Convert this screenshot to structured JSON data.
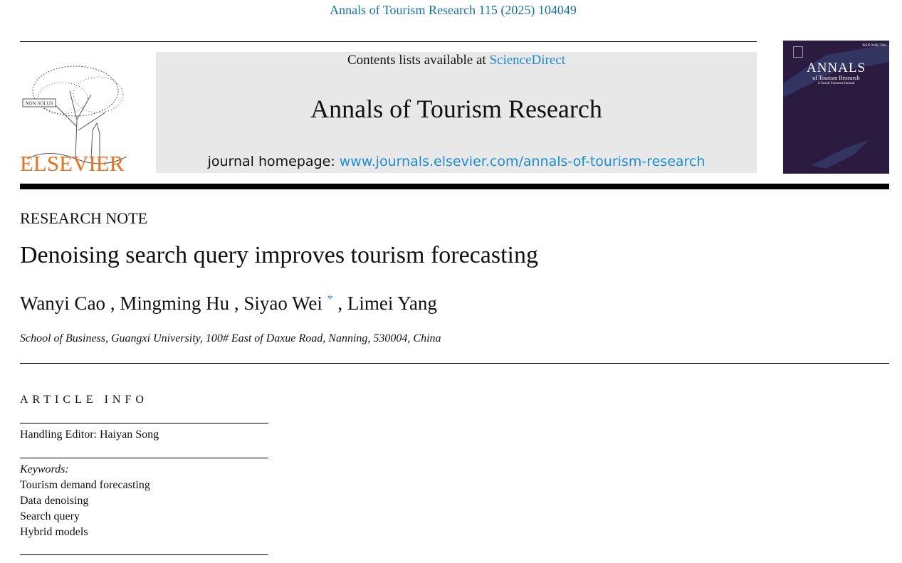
{
  "citation": "Annals of Tourism Research 115 (2025) 104049",
  "publisher": {
    "logo_text": "ELSEVIER",
    "motto": "NON SOLUS",
    "accent": "#e9711c"
  },
  "banner": {
    "contents_prefix": "Contents lists available at ",
    "contents_link": "ScienceDirect",
    "journal_name": "Annals of Tourism Research",
    "homepage_prefix": "journal homepage: ",
    "homepage_link": "www.journals.elsevier.com/annals-of-tourism-research"
  },
  "cover": {
    "title": "ANNALS",
    "subtitle": "of Tourism Research",
    "tagline": "A Social Sciences Journal",
    "issn": "ISSN 0160-7383"
  },
  "article": {
    "type": "RESEARCH NOTE",
    "title": "Denoising search query improves tourism forecasting",
    "authors": [
      "Wanyi Cao",
      "Mingming Hu",
      "Siyao Wei",
      "Limei Yang"
    ],
    "corresponding_mark": "*",
    "affiliation": "School of Business, Guangxi University, 100# East of Daxue Road, Nanning, 530004, China"
  },
  "article_info": {
    "heading": "ARTICLE INFO",
    "handling_editor": "Handling Editor: Haiyan Song",
    "keywords_label": "Keywords:",
    "keywords": [
      "Tourism demand forecasting",
      "Data denoising",
      "Search query",
      "Hybrid models"
    ]
  }
}
